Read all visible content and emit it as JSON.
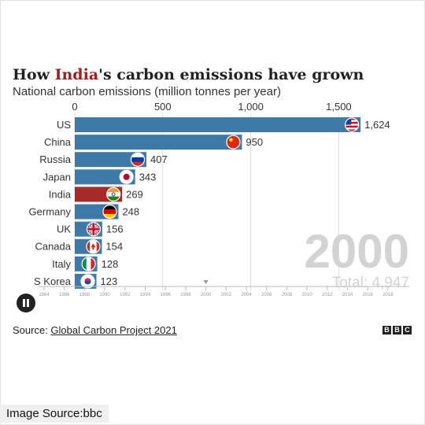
{
  "title": {
    "part1": "How ",
    "highlight": "India",
    "part2": "'s carbon emissions have grown"
  },
  "subtitle": "National carbon emissions (million tonnes per year)",
  "year_label": "2000",
  "total_label": "Total: 4,947",
  "source": {
    "prefix": "Source: ",
    "link": "Global Carbon Project 2021"
  },
  "brand": [
    "B",
    "B",
    "C"
  ],
  "image_source": "Image Source:bbc",
  "play_button_icon": "pause-icon",
  "colors": {
    "bar": "#3e7aa8",
    "highlight_bar": "#a62a2a",
    "grid": "#dddddd",
    "year_text": "#d3d3d3",
    "timeline": "#bbbbbb"
  },
  "chart_data": {
    "type": "bar",
    "orientation": "horizontal",
    "title": "How India's carbon emissions have grown",
    "subtitle": "National carbon emissions (million tonnes per year)",
    "year": 2000,
    "total": 4947,
    "categories": [
      "US",
      "China",
      "Russia",
      "Japan",
      "India",
      "Germany",
      "UK",
      "Canada",
      "Italy",
      "S Korea"
    ],
    "values": [
      1624,
      950,
      407,
      343,
      269,
      248,
      156,
      154,
      128,
      123
    ],
    "value_labels": [
      "1,624",
      "950",
      "407",
      "343",
      "269",
      "248",
      "156",
      "154",
      "128",
      "123"
    ],
    "highlight_category": "India",
    "flag_icons": [
      "us-flag-icon",
      "china-flag-icon",
      "russia-flag-icon",
      "japan-flag-icon",
      "india-flag-icon",
      "germany-flag-icon",
      "uk-flag-icon",
      "canada-flag-icon",
      "italy-flag-icon",
      "south-korea-flag-icon"
    ],
    "xlim": [
      0,
      1700
    ],
    "x_ticks": [
      0,
      500,
      1000,
      1500
    ],
    "x_tick_labels": [
      "0",
      "500",
      "1,000",
      "1,500"
    ],
    "grid": true,
    "timeline": {
      "years": [
        1984,
        1986,
        1988,
        1990,
        1992,
        1994,
        1996,
        1998,
        2000,
        2002,
        2004,
        2006,
        2008,
        2010,
        2012,
        2014,
        2016,
        2018
      ],
      "current": 2000
    }
  }
}
